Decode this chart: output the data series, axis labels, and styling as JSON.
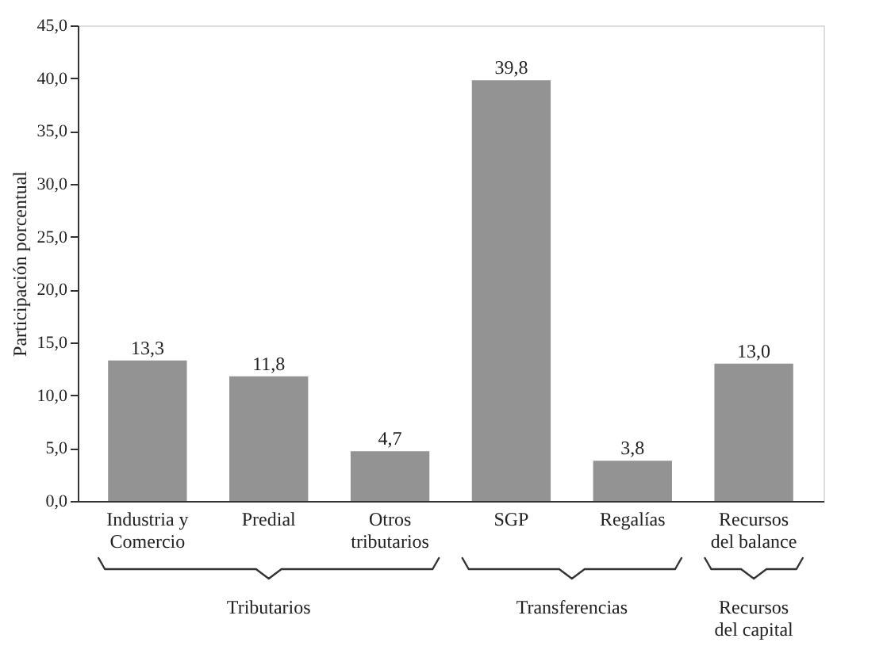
{
  "chart_data": {
    "type": "bar",
    "ylabel": "Participación porcentual",
    "categories": [
      "Industria y\nComercio",
      "Predial",
      "Otros\ntributarios",
      "SGP",
      "Regalías",
      "Recursos\ndel balance"
    ],
    "values": [
      13.3,
      11.8,
      4.7,
      39.8,
      3.8,
      13.0
    ],
    "value_labels": [
      "13,3",
      "11,8",
      "4,7",
      "39,8",
      "3,8",
      "13,0"
    ],
    "color": "#939393",
    "ylim": [
      0,
      45
    ],
    "yticks": [
      {
        "value": 0,
        "label": "0,0"
      },
      {
        "value": 5,
        "label": "5,0"
      },
      {
        "value": 10,
        "label": "10,0"
      },
      {
        "value": 15,
        "label": "15,0"
      },
      {
        "value": 20,
        "label": "20,0"
      },
      {
        "value": 25,
        "label": "25,0"
      },
      {
        "value": 30,
        "label": "30,0"
      },
      {
        "value": 35,
        "label": "35,0"
      },
      {
        "value": 40,
        "label": "40,0"
      },
      {
        "value": 45,
        "label": "45,0"
      }
    ],
    "grid": false,
    "annotations": [
      "Tributarios",
      "Transferencias",
      "Recursos\ndel capital"
    ]
  }
}
